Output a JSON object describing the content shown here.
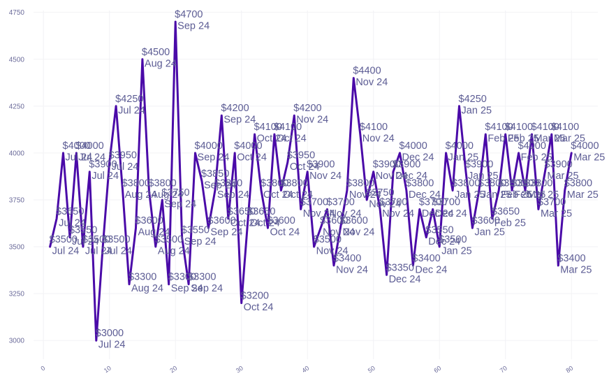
{
  "chart_data": {
    "type": "line",
    "title": "",
    "xlabel": "",
    "ylabel": "",
    "xlim": [
      -1.5,
      84
    ],
    "ylim": [
      2900,
      4760
    ],
    "grid": true,
    "legend": "none",
    "x_ticks": [
      "0",
      "10",
      "20",
      "30",
      "40",
      "50",
      "60",
      "70",
      "80"
    ],
    "y_ticks": [
      "3000",
      "3250",
      "3500",
      "3750",
      "4000",
      "4250",
      "4500",
      "4750"
    ],
    "colors": {
      "line": "#4a0aa8",
      "label": "#5c5c94",
      "tick": "#6b6b9a",
      "grid": "#f2f2f5"
    },
    "series": [
      {
        "x": [
          1,
          2,
          3,
          4,
          5,
          6,
          7,
          8,
          9,
          10,
          11,
          12,
          13,
          14,
          15,
          16,
          17,
          18,
          19,
          20,
          21,
          22,
          23,
          24,
          25,
          26,
          27,
          28,
          29,
          30,
          31,
          32,
          33,
          34,
          35,
          36,
          37,
          38,
          39,
          40,
          41,
          42,
          43,
          44,
          45,
          46,
          47,
          48,
          49,
          50,
          51,
          52,
          53,
          54,
          55,
          56,
          57,
          58,
          59,
          60,
          61,
          62,
          63,
          64,
          65,
          66,
          67,
          68,
          69,
          70,
          71,
          72,
          73,
          74,
          75,
          76,
          77,
          78,
          79,
          80
        ],
        "values": [
          3500,
          3650,
          4000,
          3550,
          4000,
          3500,
          3900,
          3000,
          3500,
          3950,
          4250,
          3800,
          3300,
          3600,
          4500,
          3800,
          3500,
          3750,
          3300,
          4700,
          3550,
          3300,
          4000,
          3850,
          3600,
          3800,
          4200,
          3650,
          4000,
          3200,
          3650,
          4100,
          3800,
          3600,
          4100,
          3800,
          3950,
          4200,
          3700,
          3900,
          3500,
          3600,
          3700,
          3400,
          3600,
          3800,
          4400,
          4100,
          3750,
          3900,
          3700,
          3350,
          3900,
          4000,
          3800,
          3400,
          3700,
          3550,
          3700,
          3500,
          4000,
          3800,
          4250,
          3900,
          3600,
          3800,
          4100,
          3650,
          3800,
          4100,
          3800,
          4000,
          3800,
          4100,
          3700,
          3900,
          4100,
          3400,
          3800,
          4000
        ],
        "point_labels": [
          "$3500 Jul 24",
          "$3650 Jul 24",
          "$4000 Jul 24",
          "$3550 Jul 24",
          "$4000 Jul 24",
          "$3500 Jul 24",
          "$3900 Jul 24",
          "$3000 Jul 24",
          "$3500 Jul 24",
          "$3950 Jul 24",
          "$4250 Jul 24",
          "$3800 Aug 24",
          "$3300 Aug 24",
          "$3600 Aug 24",
          "$4500 Aug 24",
          "$3800 Aug 24",
          "$3500 Aug 24",
          "$3750 Sep 24",
          "$3300 Sep 24",
          "$4700 Sep 24",
          "$3550 Sep 24",
          "$3300 Sep 24",
          "$4000 Sep 24",
          "$3850 Sep 24",
          "$3600 Sep 24",
          "$3800 Sep 24",
          "$4200 Sep 24",
          "$3650 Oct 24",
          "$4000 Oct 24",
          "$3200 Oct 24",
          "$3650 Oct 24",
          "$4100 Oct 24",
          "$3800 Oct 24",
          "$3600 Oct 24",
          "$4100 Oct 24",
          "$3800 Oct 24",
          "$3950 Oct 24",
          "$4200 Nov 24",
          "$3700 Nov 24",
          "$3900 Nov 24",
          "$3500 Nov 24",
          "$3600 Nov 24",
          "$3700 Nov 24",
          "$3400 Nov 24",
          "$3600 Nov 24",
          "$3800 Nov 24",
          "$4400 Nov 24",
          "$4100 Nov 24",
          "$3750 Nov 24",
          "$3900 Nov 24",
          "$3700 Nov 24",
          "$3350 Dec 24",
          "$3900 Dec 24",
          "$4000 Dec 24",
          "$3800 Dec 24",
          "$3400 Dec 24",
          "$3700 Dec 24",
          "$3550 Dec 24",
          "$3700 Dec 24",
          "$3500 Jan 25",
          "$4000 Jan 25",
          "$3800 Jan 25",
          "$4250 Jan 25",
          "$3900 Jan 25",
          "$3600 Jan 25",
          "$3800 Jan 25",
          "$4100 Feb 25",
          "$3650 Feb 25",
          "$3800 Feb 25",
          "$4100 Feb 25",
          "$3800 Feb 25",
          "$4000 Feb 25",
          "$3800 Mar 25",
          "$4100 Mar 25",
          "$3700 Mar 25",
          "$3900 Mar 25",
          "$4100 Mar 25",
          "$3400 Mar 25",
          "$3800 Mar 25",
          "$4000 Mar 25"
        ]
      }
    ]
  }
}
